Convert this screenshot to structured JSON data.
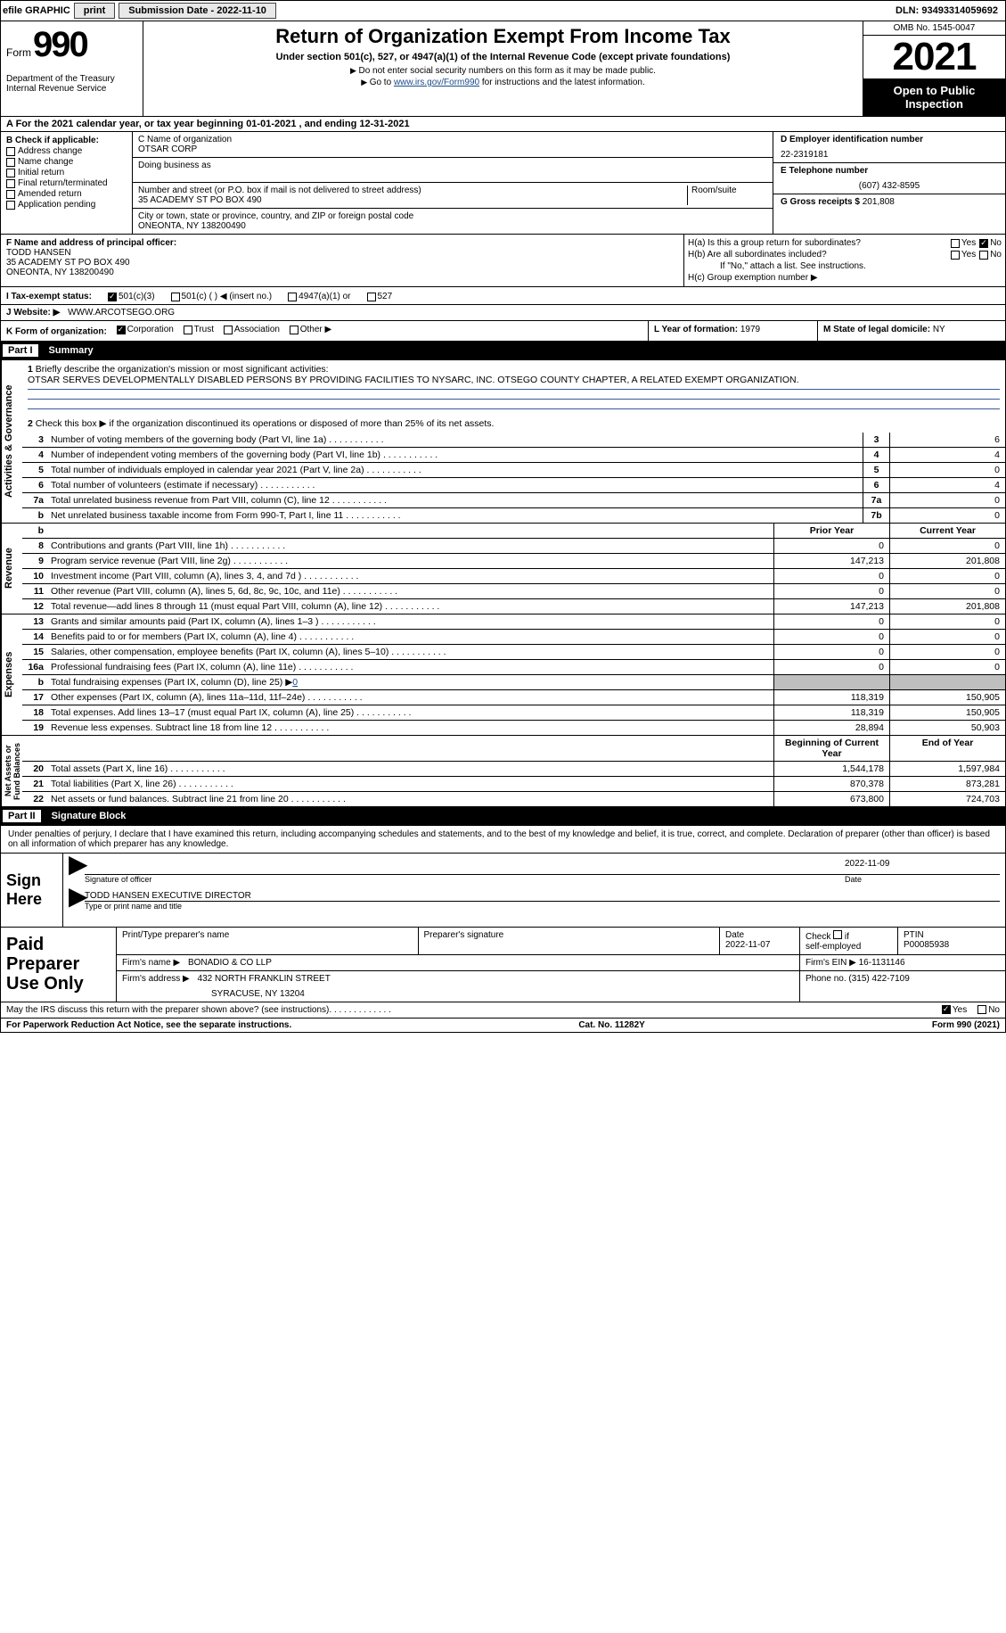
{
  "topbar": {
    "efile": "efile GRAPHIC",
    "print": "print",
    "sub_label": "Submission Date - 2022-11-10",
    "dln": "DLN: 93493314059692"
  },
  "header": {
    "form_word": "Form",
    "form_num": "990",
    "title": "Return of Organization Exempt From Income Tax",
    "subtitle": "Under section 501(c), 527, or 4947(a)(1) of the Internal Revenue Code (except private foundations)",
    "note1": "Do not enter social security numbers on this form as it may be made public.",
    "note2_pre": "Go to ",
    "note2_link": "www.irs.gov/Form990",
    "note2_post": " for instructions and the latest information.",
    "dept": "Department of the Treasury\nInternal Revenue Service",
    "omb": "OMB No. 1545-0047",
    "year": "2021",
    "inspect": "Open to Public Inspection"
  },
  "row_a": "A For the 2021 calendar year, or tax year beginning 01-01-2021   , and ending 12-31-2021",
  "b": {
    "lead": "B Check if applicable:",
    "opts": [
      "Address change",
      "Name change",
      "Initial return",
      "Final return/terminated",
      "Amended return",
      "Application pending"
    ]
  },
  "c": {
    "name_hdr": "C Name of organization",
    "name": "OTSAR CORP",
    "dba_hdr": "Doing business as",
    "dba": "",
    "street_hdr": "Number and street (or P.O. box if mail is not delivered to street address)",
    "room_hdr": "Room/suite",
    "street": "35 ACADEMY ST PO BOX 490",
    "city_hdr": "City or town, state or province, country, and ZIP or foreign postal code",
    "city": "ONEONTA, NY  138200490"
  },
  "d": {
    "ein_hdr": "D Employer identification number",
    "ein": "22-2319181",
    "tel_hdr": "E Telephone number",
    "tel": "(607) 432-8595",
    "gross_hdr": "G Gross receipts $",
    "gross": "201,808"
  },
  "f": {
    "hdr": "F Name and address of principal officer:",
    "name": "TODD HANSEN",
    "addr1": "35 ACADEMY ST PO BOX 490",
    "addr2": "ONEONTA, NY  138200490"
  },
  "h": {
    "a_lbl": "H(a)  Is this a group return for subordinates?",
    "b_lbl": "H(b)  Are all subordinates included?",
    "b_note": "If \"No,\" attach a list. See instructions.",
    "c_lbl": "H(c)  Group exemption number ▶",
    "yes": "Yes",
    "no": "No"
  },
  "i": {
    "label": "I   Tax-exempt status:",
    "o1": "501(c)(3)",
    "o2": "501(c) (  ) ◀ (insert no.)",
    "o3": "4947(a)(1) or",
    "o4": "527"
  },
  "j": {
    "label": "J   Website: ▶",
    "val": "WWW.ARCOTSEGO.ORG"
  },
  "k": {
    "label": "K Form of organization:",
    "corp": "Corporation",
    "trust": "Trust",
    "assoc": "Association",
    "other": "Other ▶"
  },
  "l": {
    "label": "L Year of formation:",
    "val": "1979"
  },
  "m": {
    "label": "M State of legal domicile:",
    "val": "NY"
  },
  "part1": {
    "title": "Part I",
    "name": "Summary",
    "vtab_ag": "Activities & Governance",
    "vtab_rev": "Revenue",
    "vtab_exp": "Expenses",
    "vtab_na": "Net Assets or\nFund Balances",
    "l1_lead": "Briefly describe the organization's mission or most significant activities:",
    "l1_text": "OTSAR SERVES DEVELOPMENTALLY DISABLED PERSONS BY PROVIDING FACILITIES TO NYSARC, INC. OTSEGO COUNTY CHAPTER, A RELATED EXEMPT ORGANIZATION.",
    "l2": "Check this box ▶     if the organization discontinued its operations or disposed of more than 25% of its net assets.",
    "lines_ag": [
      {
        "n": "3",
        "t": "Number of voting members of the governing body (Part VI, line 1a)",
        "box": "3",
        "val": "6"
      },
      {
        "n": "4",
        "t": "Number of independent voting members of the governing body (Part VI, line 1b)",
        "box": "4",
        "val": "4"
      },
      {
        "n": "5",
        "t": "Total number of individuals employed in calendar year 2021 (Part V, line 2a)",
        "box": "5",
        "val": "0"
      },
      {
        "n": "6",
        "t": "Total number of volunteers (estimate if necessary)",
        "box": "6",
        "val": "4"
      },
      {
        "n": "7a",
        "t": "Total unrelated business revenue from Part VIII, column (C), line 12",
        "box": "7a",
        "val": "0"
      },
      {
        "n": "b",
        "t": "Net unrelated business taxable income from Form 990-T, Part I, line 11",
        "box": "7b",
        "val": "0"
      }
    ],
    "col_hdr_prior": "Prior Year",
    "col_hdr_curr": "Current Year",
    "lines_rev": [
      {
        "n": "8",
        "t": "Contributions and grants (Part VIII, line 1h)",
        "p": "0",
        "c": "0"
      },
      {
        "n": "9",
        "t": "Program service revenue (Part VIII, line 2g)",
        "p": "147,213",
        "c": "201,808"
      },
      {
        "n": "10",
        "t": "Investment income (Part VIII, column (A), lines 3, 4, and 7d )",
        "p": "0",
        "c": "0"
      },
      {
        "n": "11",
        "t": "Other revenue (Part VIII, column (A), lines 5, 6d, 8c, 9c, 10c, and 11e)",
        "p": "0",
        "c": "0"
      },
      {
        "n": "12",
        "t": "Total revenue—add lines 8 through 11 (must equal Part VIII, column (A), line 12)",
        "p": "147,213",
        "c": "201,808"
      }
    ],
    "lines_exp": [
      {
        "n": "13",
        "t": "Grants and similar amounts paid (Part IX, column (A), lines 1–3 )",
        "p": "0",
        "c": "0"
      },
      {
        "n": "14",
        "t": "Benefits paid to or for members (Part IX, column (A), line 4)",
        "p": "0",
        "c": "0"
      },
      {
        "n": "15",
        "t": "Salaries, other compensation, employee benefits (Part IX, column (A), lines 5–10)",
        "p": "0",
        "c": "0"
      },
      {
        "n": "16a",
        "t": "Professional fundraising fees (Part IX, column (A), line 11e)",
        "p": "0",
        "c": "0"
      },
      {
        "n": "b",
        "t": "Total fundraising expenses (Part IX, column (D), line 25) ▶",
        "p": "grey",
        "c": "grey",
        "extra": "0"
      },
      {
        "n": "17",
        "t": "Other expenses (Part IX, column (A), lines 11a–11d, 11f–24e)",
        "p": "118,319",
        "c": "150,905"
      },
      {
        "n": "18",
        "t": "Total expenses. Add lines 13–17 (must equal Part IX, column (A), line 25)",
        "p": "118,319",
        "c": "150,905"
      },
      {
        "n": "19",
        "t": "Revenue less expenses. Subtract line 18 from line 12",
        "p": "28,894",
        "c": "50,903"
      }
    ],
    "col_hdr_beg": "Beginning of Current Year",
    "col_hdr_end": "End of Year",
    "lines_na": [
      {
        "n": "20",
        "t": "Total assets (Part X, line 16)",
        "p": "1,544,178",
        "c": "1,597,984"
      },
      {
        "n": "21",
        "t": "Total liabilities (Part X, line 26)",
        "p": "870,378",
        "c": "873,281"
      },
      {
        "n": "22",
        "t": "Net assets or fund balances. Subtract line 21 from line 20",
        "p": "673,800",
        "c": "724,703"
      }
    ]
  },
  "part2": {
    "title": "Part II",
    "name": "Signature Block",
    "decl": "Under penalties of perjury, I declare that I have examined this return, including accompanying schedules and statements, and to the best of my knowledge and belief, it is true, correct, and complete. Declaration of preparer (other than officer) is based on all information of which preparer has any knowledge.",
    "sign_here": "Sign Here",
    "sig_officer": "Signature of officer",
    "sig_date_val": "2022-11-09",
    "sig_date": "Date",
    "officer_name": "TODD HANSEN  EXECUTIVE DIRECTOR",
    "officer_line": "Type or print name and title"
  },
  "paid": {
    "label": "Paid Preparer Use Only",
    "h_name": "Print/Type preparer's name",
    "h_sig": "Preparer's signature",
    "h_date": "Date",
    "date_val": "2022-11-07",
    "h_check": "Check      if self-employed",
    "h_ptin": "PTIN",
    "ptin": "P00085938",
    "firm_name_lbl": "Firm's name    ▶",
    "firm_name": "BONADIO & CO LLP",
    "firm_ein_lbl": "Firm's EIN ▶",
    "firm_ein": "16-1131146",
    "firm_addr_lbl": "Firm's address ▶",
    "firm_addr1": "432 NORTH FRANKLIN STREET",
    "firm_addr2": "SYRACUSE, NY  13204",
    "phone_lbl": "Phone no.",
    "phone": "(315) 422-7109"
  },
  "bottom": {
    "q": "May the IRS discuss this return with the preparer shown above? (see instructions)",
    "yes": "Yes",
    "no": "No"
  },
  "footer": {
    "left": "For Paperwork Reduction Act Notice, see the separate instructions.",
    "mid": "Cat. No. 11282Y",
    "right": "Form 990 (2021)"
  }
}
